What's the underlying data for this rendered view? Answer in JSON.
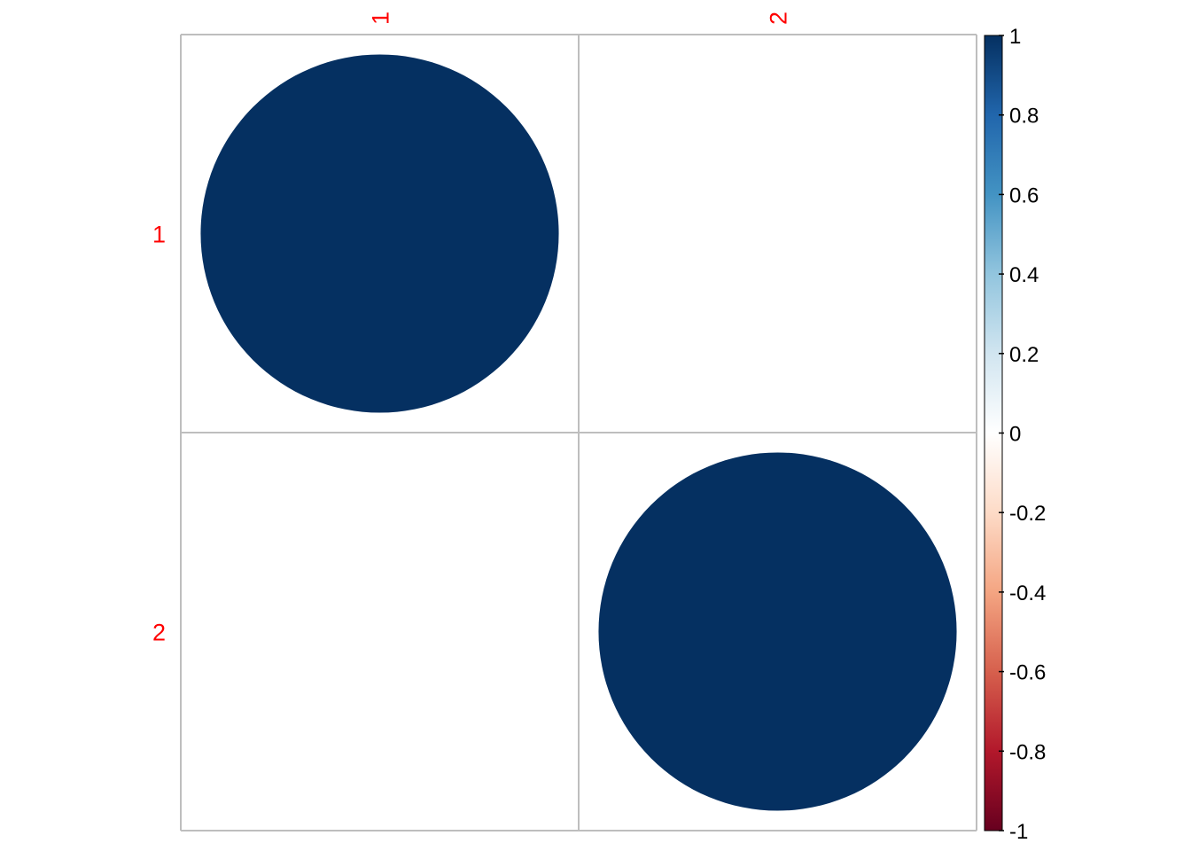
{
  "chart_data": {
    "type": "heatmap",
    "subtype": "correlation-circles",
    "row_labels": [
      "1",
      "2"
    ],
    "col_labels": [
      "1",
      "2"
    ],
    "matrix": [
      [
        1,
        0
      ],
      [
        0,
        1
      ]
    ],
    "label_color": "#FF0000",
    "colorbar": {
      "min": -1,
      "max": 1,
      "ticks": [
        "1",
        "0.8",
        "0.6",
        "0.4",
        "0.2",
        "0",
        "-0.2",
        "-0.4",
        "-0.6",
        "-0.8",
        "-1"
      ],
      "tick_values": [
        1,
        0.8,
        0.6,
        0.4,
        0.2,
        0,
        -0.2,
        -0.4,
        -0.6,
        -0.8,
        -1
      ],
      "palette": [
        "#67001F",
        "#B2182B",
        "#D6604D",
        "#F4A582",
        "#FDDBC7",
        "#FFFFFF",
        "#D1E5F0",
        "#92C5DE",
        "#4393C3",
        "#2166AC",
        "#053061"
      ]
    },
    "grid": true,
    "legend": "right"
  }
}
